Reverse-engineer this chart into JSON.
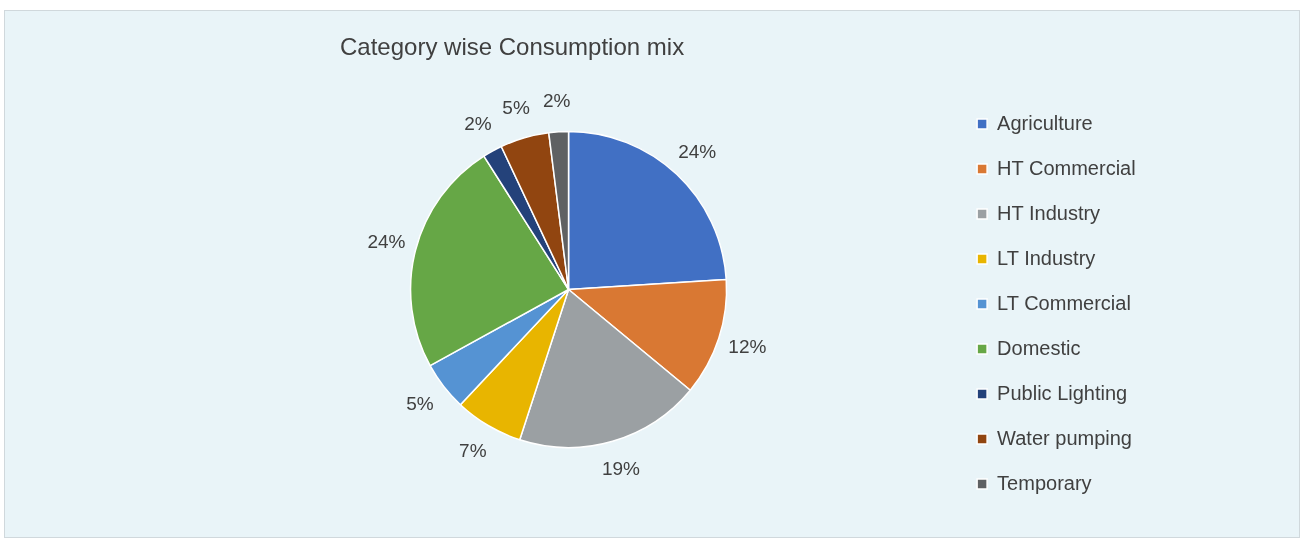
{
  "chart_data": {
    "type": "pie",
    "title": "Category wise Consumption mix",
    "categories": [
      "Agriculture",
      "HT Commercial",
      "HT Industry",
      "LT Industry",
      "LT Commercial",
      "Domestic",
      "Public Lighting",
      "Water pumping",
      "Temporary"
    ],
    "values": [
      24,
      12,
      19,
      7,
      5,
      24,
      2,
      5,
      2
    ],
    "value_labels": [
      "24%",
      "12%",
      "19%",
      "7%",
      "5%",
      "24%",
      "2%",
      "5%",
      "2%"
    ],
    "colors": [
      "#4170c4",
      "#d97833",
      "#9ba0a3",
      "#e8b500",
      "#5593d3",
      "#66a746",
      "#24427a",
      "#914510",
      "#5f6163"
    ],
    "legend": "right"
  }
}
